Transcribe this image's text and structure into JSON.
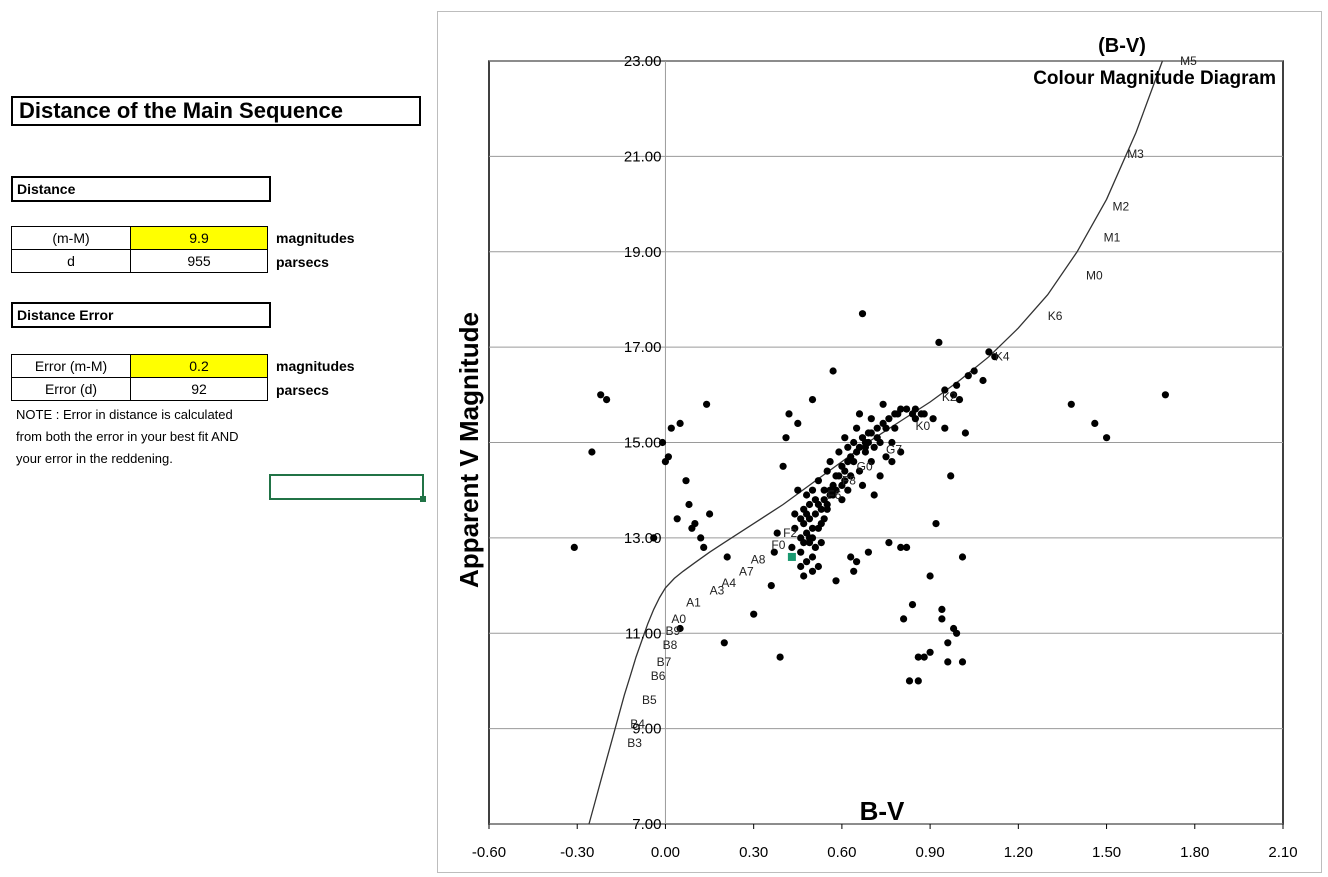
{
  "sheet": {
    "title": "Distance of the Main Sequence",
    "distance_label": "Distance",
    "distance_rows": [
      {
        "key": "(m-M)",
        "value": "9.9",
        "unit": "magnitudes",
        "highlight": true
      },
      {
        "key": "d",
        "value": "955",
        "unit": "parsecs",
        "highlight": false
      }
    ],
    "error_label": "Distance Error",
    "error_rows": [
      {
        "key": "Error (m-M)",
        "value": "0.2",
        "unit": "magnitudes",
        "highlight": true
      },
      {
        "key": "Error (d)",
        "value": "92",
        "unit": "parsecs",
        "highlight": false
      }
    ],
    "note_lines": [
      "NOTE : Error in distance is calculated",
      "from both the error in your best fit AND",
      "your error in the reddening."
    ],
    "highlight_color": "#ffff00",
    "selection_color": "#217346"
  },
  "chart_data": {
    "type": "scatter",
    "title": "(B-V)",
    "subtitle": "Colour Magnitude Diagram",
    "xlabel": "B-V",
    "ylabel": "Apparent V Magnitude",
    "xlim": [
      -0.6,
      2.1
    ],
    "ylim": [
      23.0,
      7.0
    ],
    "y_inverted": true,
    "grid": "horizontal",
    "x_ticks": [
      "-0.60",
      "-0.30",
      "0.00",
      "0.30",
      "0.60",
      "0.90",
      "1.20",
      "1.50",
      "1.80",
      "2.10"
    ],
    "y_ticks": [
      "7.00",
      "9.00",
      "11.00",
      "13.00",
      "15.00",
      "17.00",
      "19.00",
      "21.00",
      "23.00"
    ],
    "point_color": "#000000",
    "highlight_point_color": "#1a9970",
    "main_sequence": {
      "x": [
        -0.26,
        -0.24,
        -0.22,
        -0.2,
        -0.18,
        -0.16,
        -0.14,
        -0.12,
        -0.1,
        -0.08,
        -0.06,
        -0.04,
        -0.02,
        0.0,
        0.03,
        0.06,
        0.1,
        0.15,
        0.2,
        0.3,
        0.4,
        0.5,
        0.6,
        0.7,
        0.8,
        0.9,
        1.0,
        1.1,
        1.2,
        1.3,
        1.4,
        1.5,
        1.6,
        1.69
      ],
      "y": [
        7.0,
        7.45,
        7.9,
        8.35,
        8.8,
        9.25,
        9.7,
        10.1,
        10.5,
        10.85,
        11.2,
        11.5,
        11.75,
        11.95,
        12.15,
        12.3,
        12.48,
        12.7,
        12.9,
        13.3,
        13.7,
        14.15,
        14.6,
        15.05,
        15.45,
        15.85,
        16.3,
        16.8,
        17.4,
        18.1,
        19.0,
        20.1,
        21.5,
        23.0
      ]
    },
    "spectral_labels": [
      {
        "t": "B3",
        "x": -0.14,
        "y": 8.7
      },
      {
        "t": "B4",
        "x": -0.13,
        "y": 9.1
      },
      {
        "t": "B5",
        "x": -0.09,
        "y": 9.6
      },
      {
        "t": "B6",
        "x": -0.06,
        "y": 10.1
      },
      {
        "t": "B7",
        "x": -0.04,
        "y": 10.4
      },
      {
        "t": "B8",
        "x": -0.02,
        "y": 10.75
      },
      {
        "t": "B9",
        "x": -0.01,
        "y": 11.05
      },
      {
        "t": "A0",
        "x": 0.01,
        "y": 11.3
      },
      {
        "t": "A1",
        "x": 0.06,
        "y": 11.65
      },
      {
        "t": "A3",
        "x": 0.14,
        "y": 11.9
      },
      {
        "t": "A4",
        "x": 0.18,
        "y": 12.05
      },
      {
        "t": "A7",
        "x": 0.24,
        "y": 12.3
      },
      {
        "t": "A8",
        "x": 0.28,
        "y": 12.55
      },
      {
        "t": "F0",
        "x": 0.35,
        "y": 12.85
      },
      {
        "t": "F2",
        "x": 0.39,
        "y": 13.1
      },
      {
        "t": "F6",
        "x": 0.54,
        "y": 13.9
      },
      {
        "t": "F8",
        "x": 0.59,
        "y": 14.2
      },
      {
        "t": "G0",
        "x": 0.64,
        "y": 14.5
      },
      {
        "t": "G7",
        "x": 0.74,
        "y": 14.85
      },
      {
        "t": "K0",
        "x": 0.84,
        "y": 15.35
      },
      {
        "t": "K2",
        "x": 0.93,
        "y": 15.95
      },
      {
        "t": "K4",
        "x": 1.11,
        "y": 16.8
      },
      {
        "t": "K6",
        "x": 1.29,
        "y": 17.65
      },
      {
        "t": "M0",
        "x": 1.42,
        "y": 18.5
      },
      {
        "t": "M1",
        "x": 1.48,
        "y": 19.3
      },
      {
        "t": "M2",
        "x": 1.51,
        "y": 19.95
      },
      {
        "t": "M3",
        "x": 1.56,
        "y": 21.05
      },
      {
        "t": "M5",
        "x": 1.74,
        "y": 23.0
      }
    ],
    "highlight_point": {
      "x": 0.43,
      "y": 12.6
    },
    "points": [
      [
        -0.31,
        12.8
      ],
      [
        -0.25,
        14.8
      ],
      [
        -0.22,
        16.0
      ],
      [
        -0.2,
        15.9
      ],
      [
        -0.04,
        13.0
      ],
      [
        -0.01,
        15.0
      ],
      [
        0.0,
        14.6
      ],
      [
        0.01,
        14.7
      ],
      [
        0.02,
        15.3
      ],
      [
        0.04,
        13.4
      ],
      [
        0.05,
        11.1
      ],
      [
        0.05,
        15.4
      ],
      [
        0.07,
        14.2
      ],
      [
        0.08,
        13.7
      ],
      [
        0.09,
        13.2
      ],
      [
        0.1,
        13.3
      ],
      [
        0.12,
        13.0
      ],
      [
        0.13,
        12.8
      ],
      [
        0.14,
        15.8
      ],
      [
        0.15,
        13.5
      ],
      [
        0.2,
        10.8
      ],
      [
        0.21,
        12.6
      ],
      [
        0.3,
        11.4
      ],
      [
        0.36,
        12.0
      ],
      [
        0.37,
        12.7
      ],
      [
        0.38,
        13.1
      ],
      [
        0.39,
        10.5
      ],
      [
        0.4,
        14.5
      ],
      [
        0.41,
        15.1
      ],
      [
        0.42,
        15.6
      ],
      [
        0.43,
        12.8
      ],
      [
        0.44,
        13.2
      ],
      [
        0.44,
        13.5
      ],
      [
        0.45,
        15.4
      ],
      [
        0.45,
        14.0
      ],
      [
        0.46,
        12.4
      ],
      [
        0.46,
        12.7
      ],
      [
        0.46,
        13.0
      ],
      [
        0.47,
        13.3
      ],
      [
        0.47,
        13.6
      ],
      [
        0.47,
        12.2
      ],
      [
        0.48,
        12.5
      ],
      [
        0.48,
        13.1
      ],
      [
        0.48,
        13.9
      ],
      [
        0.49,
        12.9
      ],
      [
        0.49,
        13.4
      ],
      [
        0.49,
        13.7
      ],
      [
        0.5,
        12.3
      ],
      [
        0.5,
        12.6
      ],
      [
        0.5,
        13.0
      ],
      [
        0.5,
        14.0
      ],
      [
        0.5,
        15.9
      ],
      [
        0.51,
        13.5
      ],
      [
        0.51,
        13.8
      ],
      [
        0.52,
        12.4
      ],
      [
        0.52,
        13.2
      ],
      [
        0.52,
        14.2
      ],
      [
        0.53,
        12.9
      ],
      [
        0.53,
        13.6
      ],
      [
        0.54,
        13.4
      ],
      [
        0.54,
        14.0
      ],
      [
        0.55,
        13.7
      ],
      [
        0.55,
        14.4
      ],
      [
        0.56,
        13.9
      ],
      [
        0.56,
        14.6
      ],
      [
        0.57,
        16.5
      ],
      [
        0.57,
        14.1
      ],
      [
        0.58,
        12.1
      ],
      [
        0.58,
        14.3
      ],
      [
        0.59,
        14.8
      ],
      [
        0.6,
        13.8
      ],
      [
        0.6,
        14.5
      ],
      [
        0.61,
        14.2
      ],
      [
        0.61,
        15.1
      ],
      [
        0.62,
        14.9
      ],
      [
        0.62,
        14.0
      ],
      [
        0.63,
        12.6
      ],
      [
        0.63,
        14.7
      ],
      [
        0.64,
        12.3
      ],
      [
        0.64,
        15.0
      ],
      [
        0.65,
        12.5
      ],
      [
        0.65,
        15.3
      ],
      [
        0.66,
        14.4
      ],
      [
        0.66,
        15.6
      ],
      [
        0.67,
        14.1
      ],
      [
        0.67,
        17.7
      ],
      [
        0.68,
        15.0
      ],
      [
        0.68,
        14.8
      ],
      [
        0.69,
        12.7
      ],
      [
        0.69,
        15.2
      ],
      [
        0.7,
        14.6
      ],
      [
        0.7,
        15.5
      ],
      [
        0.71,
        14.9
      ],
      [
        0.71,
        13.9
      ],
      [
        0.72,
        15.1
      ],
      [
        0.73,
        14.3
      ],
      [
        0.74,
        15.4
      ],
      [
        0.74,
        15.8
      ],
      [
        0.75,
        14.7
      ],
      [
        0.76,
        12.9
      ],
      [
        0.77,
        15.0
      ],
      [
        0.77,
        14.6
      ],
      [
        0.78,
        15.3
      ],
      [
        0.79,
        15.6
      ],
      [
        0.8,
        12.8
      ],
      [
        0.8,
        14.8
      ],
      [
        0.81,
        11.3
      ],
      [
        0.82,
        12.8
      ],
      [
        0.83,
        10.0
      ],
      [
        0.84,
        11.6
      ],
      [
        0.85,
        15.7
      ],
      [
        0.85,
        15.5
      ],
      [
        0.86,
        10.0
      ],
      [
        0.86,
        10.5
      ],
      [
        0.87,
        15.6
      ],
      [
        0.88,
        10.5
      ],
      [
        0.88,
        15.6
      ],
      [
        0.9,
        10.6
      ],
      [
        0.9,
        12.2
      ],
      [
        0.91,
        15.5
      ],
      [
        0.92,
        13.3
      ],
      [
        0.93,
        17.1
      ],
      [
        0.94,
        11.3
      ],
      [
        0.94,
        11.5
      ],
      [
        0.95,
        15.3
      ],
      [
        0.95,
        16.1
      ],
      [
        0.96,
        10.8
      ],
      [
        0.96,
        10.4
      ],
      [
        0.97,
        14.3
      ],
      [
        0.98,
        11.1
      ],
      [
        0.98,
        16.0
      ],
      [
        0.99,
        11.0
      ],
      [
        0.99,
        16.2
      ],
      [
        1.0,
        15.9
      ],
      [
        1.01,
        10.4
      ],
      [
        1.01,
        12.6
      ],
      [
        1.02,
        15.2
      ],
      [
        1.03,
        16.4
      ],
      [
        1.05,
        16.5
      ],
      [
        1.08,
        16.3
      ],
      [
        1.1,
        16.9
      ],
      [
        1.12,
        16.8
      ],
      [
        1.38,
        15.8
      ],
      [
        1.46,
        15.4
      ],
      [
        1.5,
        15.1
      ],
      [
        1.7,
        16.0
      ],
      [
        0.46,
        13.4
      ],
      [
        0.47,
        12.9
      ],
      [
        0.48,
        13.5
      ],
      [
        0.49,
        13.0
      ],
      [
        0.5,
        13.2
      ],
      [
        0.51,
        12.8
      ],
      [
        0.52,
        13.7
      ],
      [
        0.53,
        13.3
      ],
      [
        0.54,
        13.8
      ],
      [
        0.55,
        13.6
      ],
      [
        0.56,
        14.0
      ],
      [
        0.57,
        13.9
      ],
      [
        0.58,
        14.0
      ],
      [
        0.59,
        14.3
      ],
      [
        0.6,
        14.1
      ],
      [
        0.61,
        14.4
      ],
      [
        0.62,
        14.6
      ],
      [
        0.63,
        14.3
      ],
      [
        0.64,
        14.6
      ],
      [
        0.65,
        14.8
      ],
      [
        0.66,
        14.9
      ],
      [
        0.67,
        15.1
      ],
      [
        0.68,
        14.9
      ],
      [
        0.69,
        15.0
      ],
      [
        0.7,
        15.2
      ],
      [
        0.72,
        15.3
      ],
      [
        0.73,
        15.0
      ],
      [
        0.75,
        15.3
      ],
      [
        0.76,
        15.5
      ],
      [
        0.78,
        15.6
      ],
      [
        0.8,
        15.7
      ],
      [
        0.82,
        15.7
      ],
      [
        0.84,
        15.6
      ]
    ]
  }
}
